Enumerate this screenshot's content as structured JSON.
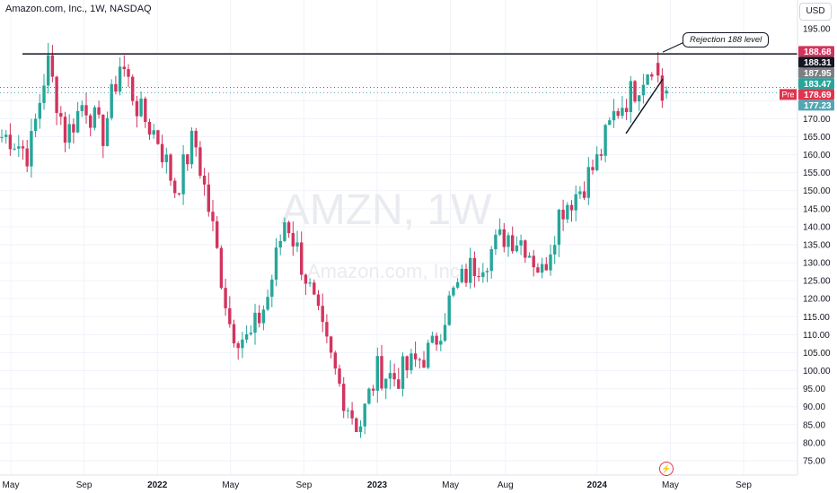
{
  "header": {
    "title": "Amazon.com, Inc., 1W, NASDAQ",
    "currency": "USD"
  },
  "watermark": {
    "symbol": "AMZN, 1W",
    "company": "Amazon.com, Inc."
  },
  "annotation": {
    "text": "Rejection 188 level"
  },
  "colors": {
    "up": "#26a69a",
    "down": "#d2345e",
    "resistance": "#131722",
    "pre_badge": "#e0344f",
    "last_badge": "#53a7b2",
    "grid": "#f0f3fa"
  },
  "chart_data": {
    "type": "candlestick",
    "title": "Amazon.com, Inc., 1W, NASDAQ",
    "ylim": [
      72,
      196
    ],
    "y_ticks": [
      75,
      80,
      85,
      90,
      95,
      100,
      105,
      110,
      115,
      120,
      125,
      130,
      135,
      140,
      145,
      150,
      155,
      160,
      165,
      170,
      175
    ],
    "x_tick_labels": [
      {
        "label": "May",
        "month": "2021-05"
      },
      {
        "label": "Sep",
        "month": "2021-09"
      },
      {
        "label": "2022",
        "month": "2022-01"
      },
      {
        "label": "May",
        "month": "2022-05"
      },
      {
        "label": "Sep",
        "month": "2022-09"
      },
      {
        "label": "2023",
        "month": "2023-01"
      },
      {
        "label": "May",
        "month": "2023-05"
      },
      {
        "label": "Aug",
        "month": "2023-08"
      },
      {
        "label": "2024",
        "month": "2024-01"
      },
      {
        "label": "May",
        "month": "2024-05"
      },
      {
        "label": "Sep",
        "month": "2024-09"
      }
    ],
    "anchor_points": [
      [
        "2021-05",
        165
      ],
      [
        "2021-06",
        160
      ],
      [
        "2021-07",
        186
      ],
      [
        "2021-08",
        165
      ],
      [
        "2021-09",
        175
      ],
      [
        "2021-10",
        165
      ],
      [
        "2021-11",
        186
      ],
      [
        "2021-12",
        172
      ],
      [
        "2022-01",
        165
      ],
      [
        "2022-02",
        150
      ],
      [
        "2022-03",
        165
      ],
      [
        "2022-04",
        140
      ],
      [
        "2022-05",
        112
      ],
      [
        "2022-06",
        108
      ],
      [
        "2022-07",
        120
      ],
      [
        "2022-08",
        143
      ],
      [
        "2022-09",
        128
      ],
      [
        "2022-10",
        110
      ],
      [
        "2022-11",
        95
      ],
      [
        "2022-12",
        84
      ],
      [
        "2023-01",
        100
      ],
      [
        "2023-02",
        98
      ],
      [
        "2023-03",
        102
      ],
      [
        "2023-04",
        106
      ],
      [
        "2023-05",
        120
      ],
      [
        "2023-06",
        128
      ],
      [
        "2023-07",
        132
      ],
      [
        "2023-08",
        138
      ],
      [
        "2023-09",
        136
      ],
      [
        "2023-10",
        127
      ],
      [
        "2023-11",
        145
      ],
      [
        "2023-12",
        150
      ],
      [
        "2024-01",
        158
      ],
      [
        "2024-02",
        172
      ],
      [
        "2024-03",
        178
      ],
      [
        "2024-04",
        186
      ]
    ],
    "final_candles": [
      {
        "open": 185.5,
        "high": 188.5,
        "low": 180.0,
        "close": 182.0
      },
      {
        "open": 182.0,
        "high": 184.0,
        "low": 173.0,
        "close": 175.0
      },
      {
        "open": 177.0,
        "high": 179.0,
        "low": 175.5,
        "close": 177.8
      }
    ],
    "resistance_level": 188,
    "price_labels": [
      {
        "text": "188.68",
        "value": 188.68,
        "color": "#d2345e"
      },
      {
        "text": "188.31",
        "value": 188.31,
        "color": "#131722"
      },
      {
        "text": "187.95",
        "value": 187.95,
        "color": "#7e7f84"
      },
      {
        "text": "183.47",
        "value": 183.47,
        "color": "#26a69a"
      },
      {
        "text": "178.69",
        "value": 178.69,
        "color": "#e0344f",
        "tag": "Pre"
      },
      {
        "text": "177.23",
        "value": 177.23,
        "color": "#53a7b2"
      }
    ],
    "partial_tick_labels": [
      "195.00",
      "185.00"
    ]
  }
}
